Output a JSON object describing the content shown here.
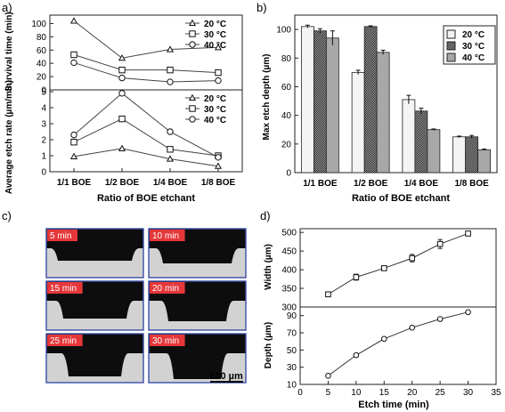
{
  "chart_data": [
    {
      "panel": "a)",
      "type": "line",
      "categories": [
        "1/1 BOE",
        "1/2 BOE",
        "1/4 BOE",
        "1/8 BOE"
      ],
      "xlabel": "Ratio of BOE etchant",
      "subplots": [
        {
          "ylabel": "Survival time (min)",
          "ylim": [
            0,
            110
          ],
          "yticks": [
            0,
            20,
            40,
            60,
            80,
            100
          ],
          "legend_position": "top-right",
          "series": [
            {
              "name": "20 °C",
              "marker": "triangle",
              "values": [
                104,
                48,
                61,
                64
              ]
            },
            {
              "name": "30 °C",
              "marker": "square",
              "values": [
                53,
                30,
                30,
                26
              ]
            },
            {
              "name": "40 °C",
              "marker": "circle",
              "values": [
                41,
                18,
                12,
                14
              ]
            }
          ]
        },
        {
          "ylabel": "Average etch rate (µm/min)",
          "ylim": [
            0,
            5
          ],
          "yticks": [
            0,
            1,
            2,
            3,
            4,
            5
          ],
          "legend_position": "top-right",
          "series": [
            {
              "name": "20 °C",
              "marker": "triangle",
              "values": [
                0.95,
                1.45,
                0.8,
                0.35
              ]
            },
            {
              "name": "30 °C",
              "marker": "square",
              "values": [
                1.85,
                3.3,
                1.4,
                1.0
              ]
            },
            {
              "name": "40 °C",
              "marker": "circle",
              "values": [
                2.3,
                4.9,
                2.5,
                0.9
              ]
            }
          ]
        }
      ]
    },
    {
      "panel": "b)",
      "type": "bar",
      "categories": [
        "1/1 BOE",
        "1/2 BOE",
        "1/4 BOE",
        "1/8 BOE"
      ],
      "xlabel": "Ratio of BOE etchant",
      "ylabel": "Max etch depth (µm)",
      "ylim": [
        0,
        110
      ],
      "yticks": [
        0,
        20,
        40,
        60,
        80,
        100
      ],
      "legend_position": "top-right",
      "series": [
        {
          "name": "20 °C",
          "fill": "#f4f4f4",
          "pattern": "plain",
          "values": [
            102,
            70,
            51,
            25
          ],
          "errors": [
            1,
            1.5,
            3,
            0.5
          ]
        },
        {
          "name": "30 °C",
          "fill": "#6e6e6e",
          "pattern": "checker",
          "values": [
            99,
            102,
            43,
            25
          ],
          "errors": [
            1.5,
            0.5,
            2,
            1
          ]
        },
        {
          "name": "40 °C",
          "fill": "#a8a8a8",
          "pattern": "plain",
          "values": [
            94,
            84,
            30,
            16
          ],
          "errors": [
            5,
            1.5,
            0.5,
            0.5
          ]
        }
      ]
    },
    {
      "panel": "d)",
      "type": "scatter",
      "xlabel": "Etch time (min)",
      "xlim": [
        0,
        35
      ],
      "xticks": [
        0,
        5,
        10,
        15,
        20,
        25,
        30,
        35
      ],
      "subplots": [
        {
          "ylabel": "Width (µm)",
          "ylim": [
            300,
            510
          ],
          "yticks": [
            300,
            350,
            400,
            450,
            500
          ],
          "marker": "square",
          "x": [
            5,
            10,
            15,
            20,
            25,
            30
          ],
          "y": [
            334,
            380,
            404,
            431,
            469,
            497
          ],
          "errors": [
            4,
            8,
            6,
            10,
            12,
            4
          ]
        },
        {
          "ylabel": "Depth (µm)",
          "ylim": [
            10,
            100
          ],
          "yticks": [
            10,
            30,
            50,
            70,
            90
          ],
          "marker": "circle",
          "x": [
            5,
            10,
            15,
            20,
            25,
            30
          ],
          "y": [
            20,
            44,
            63,
            76,
            86,
            94
          ],
          "errors": [
            0,
            0,
            0,
            0,
            0,
            0
          ]
        }
      ]
    }
  ],
  "micrographs": {
    "panel": "c)",
    "scale_label": "100 µm",
    "frames": [
      "5 min",
      "10 min",
      "15 min",
      "20 min",
      "25 min",
      "30 min"
    ]
  }
}
